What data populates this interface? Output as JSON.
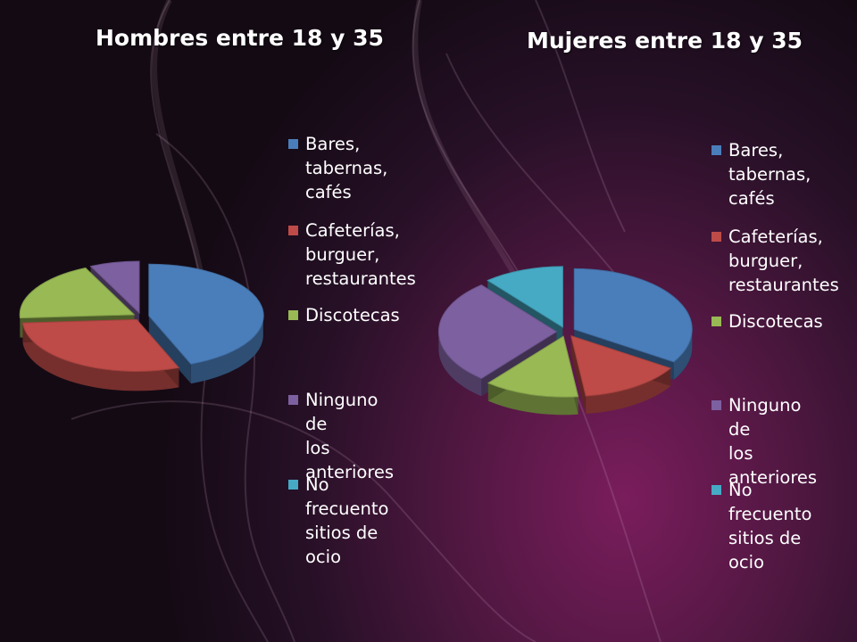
{
  "chart_data": [
    {
      "type": "pie",
      "title": "Hombres entre 18 y 35",
      "categories": [
        "Bares, tabernas, cafés",
        "Cafeterías, burguer, restaurantes",
        "Discotecas",
        "Ninguno de los anteriores",
        "No frecuento sitios de ocio"
      ],
      "values": [
        44,
        30,
        19,
        7,
        0
      ],
      "legend": "right",
      "colors": [
        "#4a7ebb",
        "#be4b48",
        "#98b954",
        "#7d60a0",
        "#46aac5"
      ]
    },
    {
      "type": "pie",
      "title": "Mujeres entre 18 y 35",
      "categories": [
        "Bares, tabernas, cafés",
        "Cafeterías, burguer, restaurantes",
        "Discotecas",
        "Ninguno de los anteriores",
        "No frecuento sitios de ocio"
      ],
      "values": [
        34,
        14,
        13,
        28,
        11
      ],
      "legend": "right",
      "colors": [
        "#4a7ebb",
        "#be4b48",
        "#98b954",
        "#7d60a0",
        "#46aac5"
      ]
    }
  ],
  "legends": {
    "men": [
      {
        "lines": [
          "Bares,",
          "tabernas,",
          "cafés"
        ]
      },
      {
        "lines": [
          "Cafeterías,",
          "burguer,",
          "restaurantes"
        ]
      },
      {
        "lines": [
          "Discotecas"
        ]
      },
      {
        "lines": [
          "Ninguno de",
          "los anteriores"
        ]
      },
      {
        "lines": [
          "No frecuento",
          "sitios de ocio"
        ]
      }
    ],
    "women": [
      {
        "lines": [
          "Bares,",
          "tabernas,",
          "cafés"
        ]
      },
      {
        "lines": [
          "Cafeterías,",
          "burguer,",
          "restaurantes"
        ]
      },
      {
        "lines": [
          "Discotecas"
        ]
      },
      {
        "lines": [
          "Ninguno de",
          "los",
          "anteriores"
        ]
      },
      {
        "lines": [
          "No frecuento",
          "sitios de ocio"
        ]
      }
    ]
  }
}
